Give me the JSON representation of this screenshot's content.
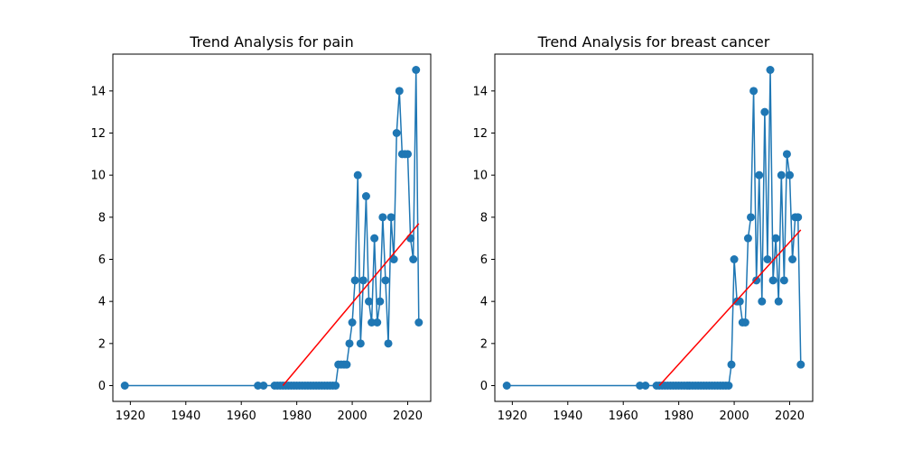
{
  "chart_data": [
    {
      "type": "line",
      "title": "Trend Analysis for pain",
      "xlabel": "",
      "ylabel": "",
      "xlim": [
        1913.7,
        2028.3
      ],
      "ylim": [
        -0.75,
        15.75
      ],
      "xticks": [
        1920,
        1940,
        1960,
        1980,
        2000,
        2020
      ],
      "yticks": [
        0,
        2,
        4,
        6,
        8,
        10,
        12,
        14
      ],
      "grid": false,
      "colors": {
        "series": "#1f77b4",
        "trend": "#ff0000"
      },
      "series": [
        {
          "x": [
            1918,
            1966,
            1968,
            1972,
            1973,
            1974,
            1975,
            1976,
            1977,
            1978,
            1979,
            1980,
            1981,
            1982,
            1983,
            1984,
            1985,
            1986,
            1987,
            1988,
            1989,
            1990,
            1991,
            1992,
            1993,
            1994,
            1995,
            1996,
            1997,
            1998,
            1999,
            2000,
            2001,
            2002,
            2003,
            2004,
            2005,
            2006,
            2007,
            2008,
            2009,
            2010,
            2011,
            2012,
            2013,
            2014,
            2015,
            2016,
            2017,
            2018,
            2019,
            2020,
            2021,
            2022,
            2023,
            2024
          ],
          "y": [
            0,
            0,
            0,
            0,
            0,
            0,
            0,
            0,
            0,
            0,
            0,
            0,
            0,
            0,
            0,
            0,
            0,
            0,
            0,
            0,
            0,
            0,
            0,
            0,
            0,
            0,
            1,
            1,
            1,
            1,
            2,
            3,
            5,
            10,
            2,
            5,
            9,
            4,
            3,
            7,
            3,
            4,
            8,
            5,
            2,
            8,
            6,
            12,
            14,
            11,
            11,
            11,
            7,
            6,
            15,
            3
          ]
        }
      ],
      "trend": {
        "x": [
          1975,
          2024
        ],
        "y": [
          0,
          7.7
        ]
      }
    },
    {
      "type": "line",
      "title": "Trend Analysis for breast cancer",
      "xlabel": "",
      "ylabel": "",
      "xlim": [
        1913.7,
        2028.3
      ],
      "ylim": [
        -0.75,
        15.75
      ],
      "xticks": [
        1920,
        1940,
        1960,
        1980,
        2000,
        2020
      ],
      "yticks": [
        0,
        2,
        4,
        6,
        8,
        10,
        12,
        14
      ],
      "grid": false,
      "colors": {
        "series": "#1f77b4",
        "trend": "#ff0000"
      },
      "series": [
        {
          "x": [
            1918,
            1966,
            1968,
            1972,
            1973,
            1974,
            1975,
            1976,
            1977,
            1978,
            1979,
            1980,
            1981,
            1982,
            1983,
            1984,
            1985,
            1986,
            1987,
            1988,
            1989,
            1990,
            1991,
            1992,
            1993,
            1994,
            1995,
            1996,
            1997,
            1998,
            1999,
            2000,
            2001,
            2002,
            2003,
            2004,
            2005,
            2006,
            2007,
            2008,
            2009,
            2010,
            2011,
            2012,
            2013,
            2014,
            2015,
            2016,
            2017,
            2018,
            2019,
            2020,
            2021,
            2022,
            2023,
            2024
          ],
          "y": [
            0,
            0,
            0,
            0,
            0,
            0,
            0,
            0,
            0,
            0,
            0,
            0,
            0,
            0,
            0,
            0,
            0,
            0,
            0,
            0,
            0,
            0,
            0,
            0,
            0,
            0,
            0,
            0,
            0,
            0,
            1,
            6,
            4,
            4,
            3,
            3,
            7,
            8,
            14,
            5,
            10,
            4,
            13,
            6,
            15,
            5,
            7,
            4,
            10,
            5,
            11,
            10,
            6,
            8,
            8,
            1
          ]
        }
      ],
      "trend": {
        "x": [
          1973,
          2024
        ],
        "y": [
          0,
          7.4
        ]
      }
    }
  ]
}
